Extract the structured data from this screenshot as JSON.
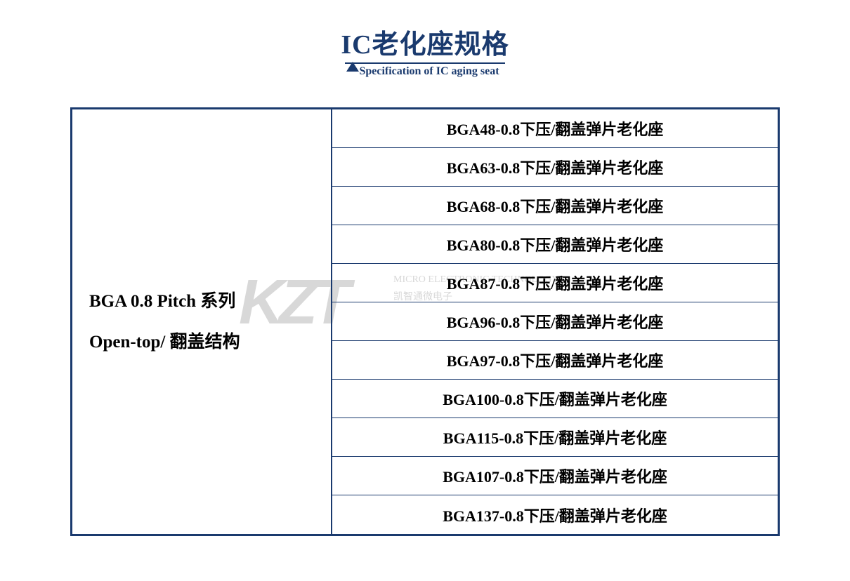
{
  "header": {
    "title_cn": "IC老化座规格",
    "title_en": "Specification of IC aging seat"
  },
  "watermark": {
    "main": "KZT",
    "line1": "MICRO ELECTRONIC TECHNOLOGY",
    "line2": "凯智通微电子"
  },
  "table": {
    "left": {
      "line1": "BGA  0.8 Pitch 系列",
      "line2": "Open-top/ 翻盖结构"
    },
    "rows": [
      "BGA48-0.8下压/翻盖弹片老化座",
      "BGA63-0.8下压/翻盖弹片老化座",
      "BGA68-0.8下压/翻盖弹片老化座",
      "BGA80-0.8下压/翻盖弹片老化座",
      "BGA87-0.8下压/翻盖弹片老化座",
      "BGA96-0.8下压/翻盖弹片老化座",
      "BGA97-0.8下压/翻盖弹片老化座",
      "BGA100-0.8下压/翻盖弹片老化座",
      "BGA115-0.8下压/翻盖弹片老化座",
      "BGA107-0.8下压/翻盖弹片老化座",
      "BGA137-0.8下压/翻盖弹片老化座"
    ]
  },
  "colors": {
    "primary": "#1a3a6e",
    "text": "#000000",
    "watermark": "#d8d8d8",
    "background": "#ffffff"
  },
  "typography": {
    "title_fontsize": 38,
    "subtitle_fontsize": 16,
    "left_text_fontsize": 25,
    "row_text_fontsize": 22,
    "watermark_fontsize": 90
  }
}
